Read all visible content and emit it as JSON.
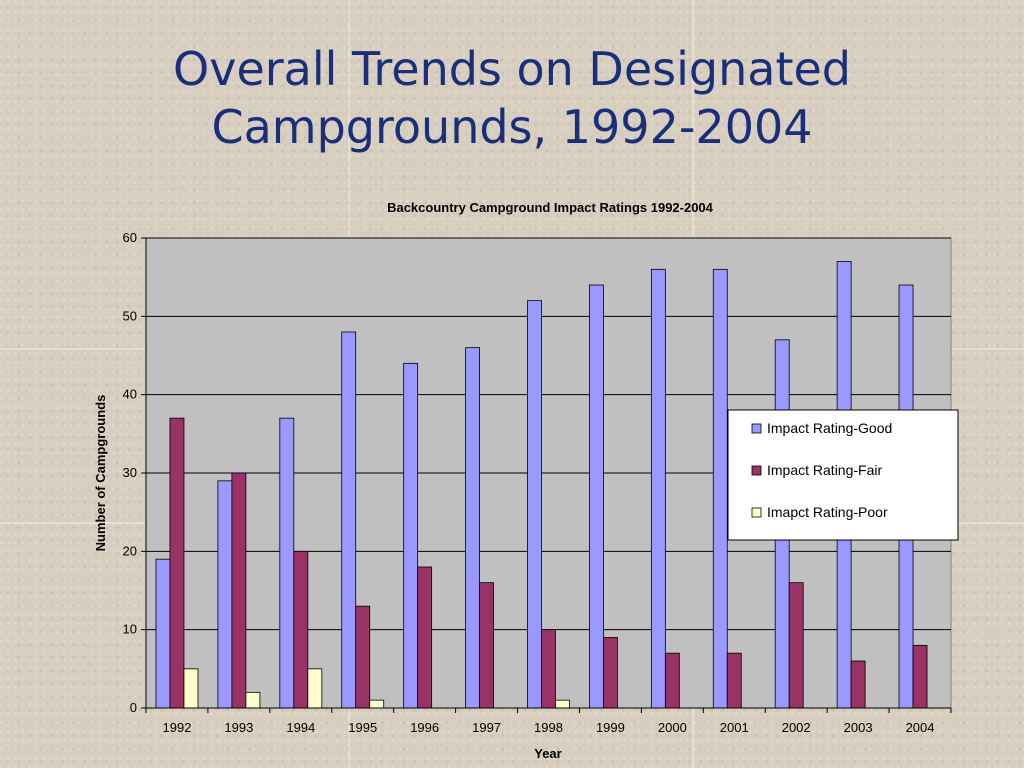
{
  "slide": {
    "title_line1": "Overall Trends on Designated",
    "title_line2": "Campgrounds, 1992-2004"
  },
  "chart_data": {
    "type": "bar",
    "title": "Backcountry Campground Impact Ratings 1992-2004",
    "xlabel": "Year",
    "ylabel": "Number of Campgrounds",
    "ylim": [
      0,
      60
    ],
    "yticks": [
      0,
      10,
      20,
      30,
      40,
      50,
      60
    ],
    "grid": true,
    "legend_position": "right",
    "categories": [
      "1992",
      "1993",
      "1994",
      "1995",
      "1996",
      "1997",
      "1998",
      "1999",
      "2000",
      "2001",
      "2002",
      "2003",
      "2004"
    ],
    "series": [
      {
        "name": "Impact Rating-Good",
        "color": "#9999ff",
        "values": [
          19,
          29,
          37,
          48,
          44,
          46,
          52,
          54,
          56,
          56,
          47,
          57,
          54
        ]
      },
      {
        "name": "Impact Rating-Fair",
        "color": "#993366",
        "values": [
          37,
          30,
          20,
          13,
          18,
          16,
          10,
          9,
          7,
          7,
          16,
          6,
          8
        ]
      },
      {
        "name": "Imapct Rating-Poor",
        "color": "#ffffcc",
        "values": [
          5,
          2,
          5,
          1,
          0,
          0,
          1,
          0,
          0,
          0,
          0,
          0,
          0
        ]
      }
    ],
    "plot_background": "#c0c0c0"
  }
}
